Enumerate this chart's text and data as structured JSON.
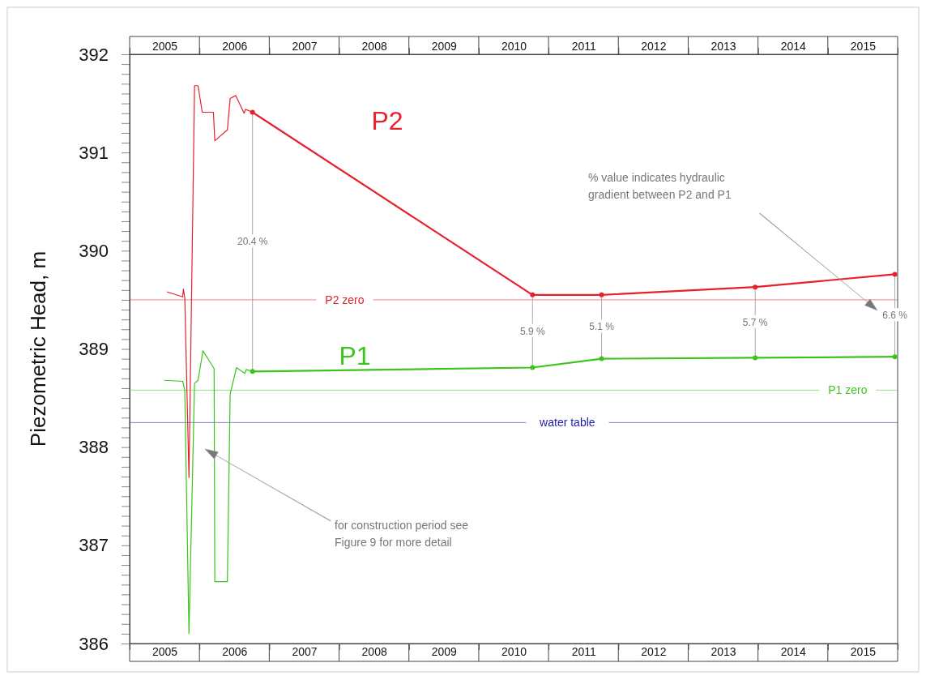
{
  "chart_data": {
    "type": "line",
    "ylabel": "Piezometric Head, m",
    "xlim": [
      2005,
      2016
    ],
    "ylim": [
      386,
      392
    ],
    "xticks": [
      {
        "value": 2005,
        "label": null
      },
      {
        "value": 2005.5,
        "label": "2005"
      },
      {
        "value": 2006,
        "label": null
      },
      {
        "value": 2006.5,
        "label": "2006"
      },
      {
        "value": 2007,
        "label": null
      },
      {
        "value": 2007.5,
        "label": "2007"
      },
      {
        "value": 2008,
        "label": null
      },
      {
        "value": 2008.5,
        "label": "2008"
      },
      {
        "value": 2009,
        "label": null
      },
      {
        "value": 2009.5,
        "label": "2009"
      },
      {
        "value": 2010,
        "label": null
      },
      {
        "value": 2010.5,
        "label": "2010"
      },
      {
        "value": 2011,
        "label": null
      },
      {
        "value": 2011.5,
        "label": "2011"
      },
      {
        "value": 2012,
        "label": null
      },
      {
        "value": 2012.5,
        "label": "2012"
      },
      {
        "value": 2013,
        "label": null
      },
      {
        "value": 2013.5,
        "label": "2013"
      },
      {
        "value": 2014,
        "label": null
      },
      {
        "value": 2014.5,
        "label": "2014"
      },
      {
        "value": 2015,
        "label": null
      },
      {
        "value": 2015.5,
        "label": "2015"
      },
      {
        "value": 2016,
        "label": null
      }
    ],
    "x2lim": [
      2005,
      2016
    ],
    "x2ticks": [
      {
        "value": 2005,
        "label": null
      },
      {
        "value": 2005.5,
        "label": "2005"
      },
      {
        "value": 2006,
        "label": null
      },
      {
        "value": 2006.5,
        "label": "2006"
      },
      {
        "value": 2007,
        "label": null
      },
      {
        "value": 2007.5,
        "label": "2007"
      },
      {
        "value": 2008,
        "label": null
      },
      {
        "value": 2008.5,
        "label": "2008"
      },
      {
        "value": 2009,
        "label": null
      },
      {
        "value": 2009.5,
        "label": "2009"
      },
      {
        "value": 2010,
        "label": null
      },
      {
        "value": 2010.5,
        "label": "2010"
      },
      {
        "value": 2011,
        "label": null
      },
      {
        "value": 2011.5,
        "label": "2011"
      },
      {
        "value": 2012,
        "label": null
      },
      {
        "value": 2012.5,
        "label": "2012"
      },
      {
        "value": 2013,
        "label": null
      },
      {
        "value": 2013.5,
        "label": "2013"
      },
      {
        "value": 2014,
        "label": null
      },
      {
        "value": 2014.5,
        "label": "2014"
      },
      {
        "value": 2015,
        "label": null
      },
      {
        "value": 2015.5,
        "label": "2015"
      },
      {
        "value": 2016,
        "label": null
      }
    ],
    "yticks": [
      386,
      {
        "value": 386.1,
        "label": null
      },
      {
        "value": 386.2,
        "label": null
      },
      {
        "value": 386.3,
        "label": null
      },
      {
        "value": 386.4,
        "label": null
      },
      {
        "value": 386.5,
        "label": null
      },
      {
        "value": 386.6,
        "label": null
      },
      {
        "value": 386.7,
        "label": null
      },
      {
        "value": 386.8,
        "label": null
      },
      {
        "value": 386.9,
        "label": null
      },
      387,
      {
        "value": 387.1,
        "label": null
      },
      {
        "value": 387.2,
        "label": null
      },
      {
        "value": 387.3,
        "label": null
      },
      {
        "value": 387.4,
        "label": null
      },
      {
        "value": 387.5,
        "label": null
      },
      {
        "value": 387.6,
        "label": null
      },
      {
        "value": 387.7,
        "label": null
      },
      {
        "value": 387.8,
        "label": null
      },
      {
        "value": 387.9,
        "label": null
      },
      388,
      {
        "value": 388.1,
        "label": null
      },
      {
        "value": 388.2,
        "label": null
      },
      {
        "value": 388.3,
        "label": null
      },
      {
        "value": 388.4,
        "label": null
      },
      {
        "value": 388.5,
        "label": null
      },
      {
        "value": 388.6,
        "label": null
      },
      {
        "value": 388.7,
        "label": null
      },
      {
        "value": 388.8,
        "label": null
      },
      {
        "value": 388.9,
        "label": null
      },
      389,
      {
        "value": 389.1,
        "label": null
      },
      {
        "value": 389.2,
        "label": null
      },
      {
        "value": 389.3,
        "label": null
      },
      {
        "value": 389.4,
        "label": null
      },
      {
        "value": 389.5,
        "label": null
      },
      {
        "value": 389.6,
        "label": null
      },
      {
        "value": 389.7,
        "label": null
      },
      {
        "value": 389.8,
        "label": null
      },
      {
        "value": 389.9,
        "label": null
      },
      390,
      {
        "value": 390.1,
        "label": null
      },
      {
        "value": 390.2,
        "label": null
      },
      {
        "value": 390.3,
        "label": null
      },
      {
        "value": 390.4,
        "label": null
      },
      {
        "value": 390.5,
        "label": null
      },
      {
        "value": 390.6,
        "label": null
      },
      {
        "value": 390.7,
        "label": null
      },
      {
        "value": 390.8,
        "label": null
      },
      {
        "value": 390.9,
        "label": null
      },
      391,
      {
        "value": 391.1,
        "label": null
      },
      {
        "value": 391.2,
        "label": null
      },
      {
        "value": 391.3,
        "label": null
      },
      {
        "value": 391.4,
        "label": null
      },
      {
        "value": 391.5,
        "label": null
      },
      {
        "value": 391.6,
        "label": null
      },
      {
        "value": 391.7,
        "label": null
      },
      {
        "value": 391.8,
        "label": null
      },
      {
        "value": 391.9,
        "label": null
      },
      392
    ],
    "grid": false,
    "series": [
      {
        "color": "#e8202a",
        "marker": "none",
        "x": [
          2005.54,
          2005.76,
          2005.77,
          2005.79,
          2005.85,
          2005.93,
          2005.98,
          2006.04,
          2006.2,
          2006.22,
          2006.4,
          2006.44,
          2006.52,
          2006.64,
          2006.66,
          2006.76
        ],
        "values": [
          389.58,
          389.53,
          389.61,
          389.52,
          387.69,
          391.68,
          391.68,
          391.41,
          391.41,
          391.12,
          391.23,
          391.55,
          391.58,
          391.4,
          391.44,
          391.41
        ]
      },
      {
        "name": "P2",
        "color": "#e8202a",
        "marker": "circle",
        "x": [
          2006.76,
          2010.77,
          2011.76,
          2013.96,
          2015.96
        ],
        "values": [
          391.41,
          389.55,
          389.55,
          389.63,
          389.76
        ]
      },
      {
        "color": "#3cc41c",
        "marker": "none",
        "x": [
          2005.5,
          2005.76,
          2005.78,
          2005.79,
          2005.85,
          2005.93,
          2005.98,
          2006.05,
          2006.21,
          2006.22,
          2006.4,
          2006.44,
          2006.53,
          2006.65,
          2006.67,
          2006.76
        ],
        "values": [
          388.68,
          388.67,
          388.61,
          388.58,
          386.1,
          388.65,
          388.68,
          388.98,
          388.8,
          386.63,
          386.63,
          388.54,
          388.81,
          388.75,
          388.79,
          388.77
        ]
      },
      {
        "name": "P1",
        "color": "#3cc41c",
        "marker": "circle",
        "x": [
          2006.76,
          2010.77,
          2011.76,
          2013.96,
          2015.96
        ],
        "values": [
          388.77,
          388.81,
          388.9,
          388.91,
          388.92
        ]
      }
    ],
    "ref_lines": [
      {
        "axis": "y",
        "value": 389.5,
        "label": "P2 zero",
        "color": "#e0202a"
      },
      {
        "axis": "y",
        "value": 388.58,
        "label": "P1 zero",
        "color": "#44c424"
      },
      {
        "axis": "y",
        "value": 388.25,
        "label": "water table",
        "color": "#1c1ca8"
      }
    ],
    "annotations": [
      "20.4 %",
      {
        "text": "5.9 %",
        "x": 2010.77
      },
      {
        "text": "5.1 %",
        "x": 2011.76
      },
      {
        "text": "5.7 %",
        "x": 2013.96
      },
      {
        "text": "6.6 %",
        "x": 2015.96
      },
      "% value indicates hydraulic gradient between P2 and P1",
      "for construction period see Figure 9 for more detail"
    ]
  }
}
